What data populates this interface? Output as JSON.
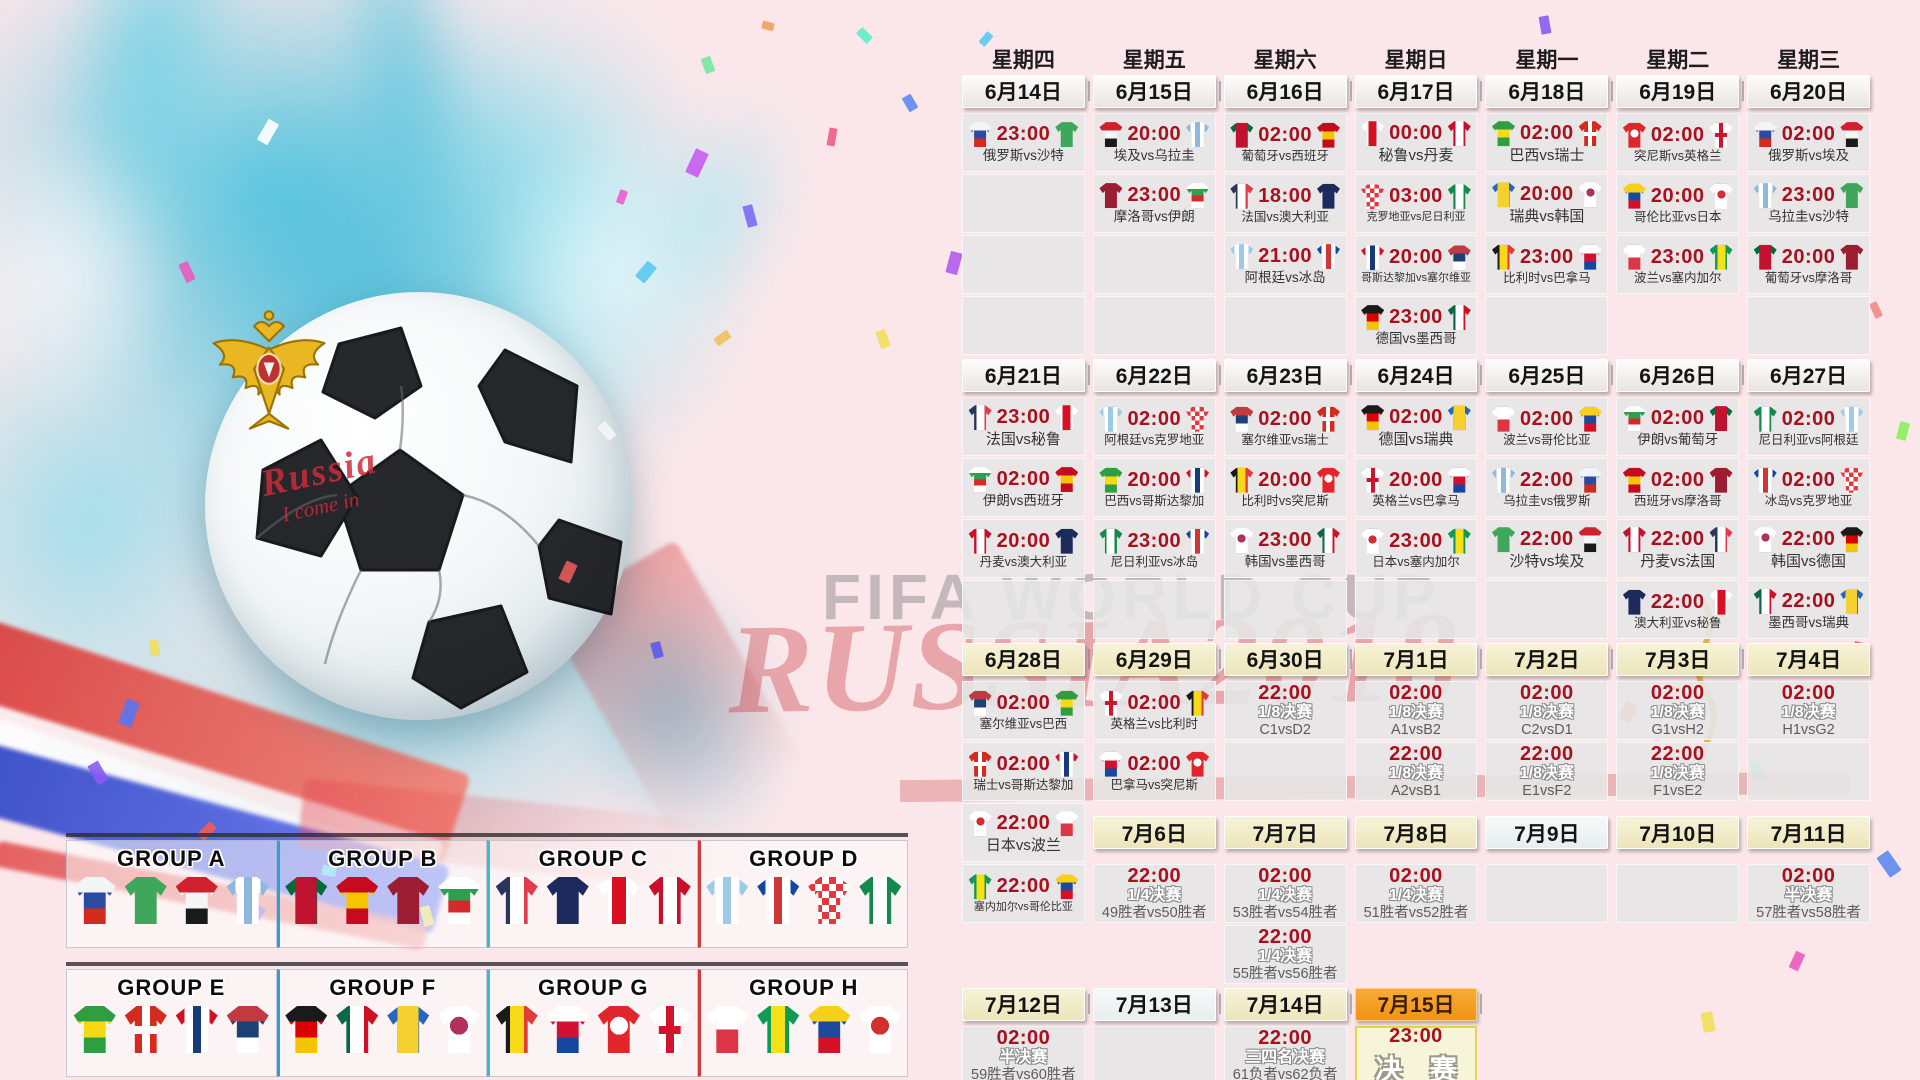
{
  "watermark": {
    "line1": "FIFA WORLD CUP",
    "line2": "RUSSIA2018"
  },
  "ball": {
    "handwriting_line1": "Russia",
    "handwriting_line2": "I come in"
  },
  "weekdays": [
    "星期四",
    "星期五",
    "星期六",
    "星期日",
    "星期一",
    "星期二",
    "星期三"
  ],
  "teams": {
    "俄罗斯": {
      "c": [
        "#f2f4f6",
        "#2a4ba0",
        "#d32a1e"
      ],
      "d": "h"
    },
    "沙特": {
      "c": [
        "#3fa75c"
      ],
      "d": "h"
    },
    "埃及": {
      "c": [
        "#d0202e",
        "#f5f5f5",
        "#1a1a1a"
      ],
      "d": "h"
    },
    "乌拉圭": {
      "c": [
        "#8fb8dd",
        "#ffffff",
        "#8fb8dd",
        "#ffffff",
        "#8fb8dd"
      ],
      "d": "v"
    },
    "葡萄牙": {
      "c": [
        "#046a38",
        "#c1122f",
        "#c1122f",
        "#046a38"
      ],
      "d": "v"
    },
    "西班牙": {
      "c": [
        "#c60b1e",
        "#f7c500",
        "#c60b1e"
      ],
      "d": "h"
    },
    "摩洛哥": {
      "c": [
        "#9c1c31"
      ],
      "d": "h"
    },
    "伊朗": {
      "c": [
        "#ffffff",
        "#2f9e4f",
        "#d42a2a",
        "#ffffff"
      ],
      "d": "h"
    },
    "法国": {
      "c": [
        "#27355f",
        "#ffffff",
        "#e23b4e"
      ],
      "d": "v"
    },
    "澳大利亚": {
      "c": [
        "#1d2a5c"
      ],
      "d": "h"
    },
    "秘鲁": {
      "c": [
        "#ffffff",
        "#d91023",
        "#ffffff"
      ],
      "d": "v"
    },
    "丹麦": {
      "c": [
        "#c8102e",
        "#ffffff",
        "#c8102e"
      ],
      "d": "v"
    },
    "阿根廷": {
      "c": [
        "#9ccbe9",
        "#ffffff",
        "#9ccbe9",
        "#ffffff",
        "#9ccbe9"
      ],
      "d": "v"
    },
    "冰岛": {
      "c": [
        "#1448a0",
        "#ffffff",
        "#d13636",
        "#ffffff",
        "#1448a0"
      ],
      "d": "v"
    },
    "克罗地亚": {
      "c": [
        "#e0393e",
        "#ffffff"
      ],
      "d": "h",
      "p": "checker"
    },
    "尼日利亚": {
      "c": [
        "#13894c",
        "#ffffff",
        "#13894c"
      ],
      "d": "v"
    },
    "巴西": {
      "c": [
        "#2f9e41",
        "#f6d912",
        "#2f9e41"
      ],
      "d": "h"
    },
    "瑞士": {
      "c": [
        "#d52b1e"
      ],
      "d": "h",
      "p": "plus",
      "pc": "#ffffff"
    },
    "哥斯达黎加": {
      "c": [
        "#d31126",
        "#ffffff",
        "#163a7a",
        "#ffffff",
        "#d31126"
      ],
      "d": "v"
    },
    "塞尔维亚": {
      "c": [
        "#c13a40",
        "#1d4076",
        "#ffffff"
      ],
      "d": "h"
    },
    "德国": {
      "c": [
        "#1a1a1a",
        "#dd0000",
        "#f5c400"
      ],
      "d": "h"
    },
    "墨西哥": {
      "c": [
        "#0b6847",
        "#ffffff",
        "#cf1126"
      ],
      "d": "v"
    },
    "瑞典": {
      "c": [
        "#2567bd",
        "#f5d130",
        "#f5d130",
        "#2567bd"
      ],
      "d": "v"
    },
    "韩国": {
      "c": [
        "#ffffff"
      ],
      "d": "h",
      "p": "dot",
      "pc": "#b03060"
    },
    "日本": {
      "c": [
        "#ffffff"
      ],
      "d": "h",
      "p": "dot",
      "pc": "#d03030"
    },
    "比利时": {
      "c": [
        "#1a1a1a",
        "#f7d917",
        "#e23b3b"
      ],
      "d": "v"
    },
    "巴拿马": {
      "c": [
        "#ffffff",
        "#d21034",
        "#1546a0"
      ],
      "d": "h"
    },
    "突尼斯": {
      "c": [
        "#e0252b"
      ],
      "d": "h",
      "p": "dot",
      "pc": "#ffffff"
    },
    "英格兰": {
      "c": [
        "#ffffff"
      ],
      "d": "h",
      "p": "plus",
      "pc": "#cf142b"
    },
    "波兰": {
      "c": [
        "#ffffff",
        "#dc3545"
      ],
      "d": "h"
    },
    "塞内加尔": {
      "c": [
        "#119a53",
        "#f7e017",
        "#119a53"
      ],
      "d": "v"
    },
    "哥伦比亚": {
      "c": [
        "#f7d117",
        "#1e4a9e",
        "#d31126"
      ],
      "d": "h"
    }
  },
  "bands": [
    {
      "kind": "weekday",
      "cells": [
        {
          "t": "wd",
          "x": "星期四"
        },
        {
          "t": "wd",
          "x": "星期五"
        },
        {
          "t": "wd",
          "x": "星期六"
        },
        {
          "t": "wd",
          "x": "星期日"
        },
        {
          "t": "wd",
          "x": "星期一"
        },
        {
          "t": "wd",
          "x": "星期二"
        },
        {
          "t": "wd",
          "x": "星期三"
        }
      ]
    },
    {
      "kind": "dates",
      "cells": [
        {
          "t": "date",
          "s": "plain",
          "x": "6月14日"
        },
        {
          "t": "date",
          "s": "plain",
          "x": "6月15日"
        },
        {
          "t": "date",
          "s": "plain",
          "x": "6月16日"
        },
        {
          "t": "date",
          "s": "plain",
          "x": "6月17日"
        },
        {
          "t": "date",
          "s": "plain",
          "x": "6月18日"
        },
        {
          "t": "date",
          "s": "plain",
          "x": "6月19日"
        },
        {
          "t": "date",
          "s": "plain",
          "x": "6月20日"
        }
      ]
    },
    {
      "kind": "matches",
      "cells": [
        {
          "t": "m",
          "time": "23:00",
          "h": "俄罗斯",
          "a": "沙特",
          "x": "俄罗斯vs沙特"
        },
        {
          "t": "m",
          "time": "20:00",
          "h": "埃及",
          "a": "乌拉圭",
          "x": "埃及vs乌拉圭"
        },
        {
          "t": "m",
          "time": "02:00",
          "h": "葡萄牙",
          "a": "西班牙",
          "x": "葡萄牙vs西班牙"
        },
        {
          "t": "m",
          "time": "00:00",
          "h": "秘鲁",
          "a": "丹麦",
          "x": "秘鲁vs丹麦"
        },
        {
          "t": "m",
          "time": "02:00",
          "h": "巴西",
          "a": "瑞士",
          "x": "巴西vs瑞士"
        },
        {
          "t": "m",
          "time": "02:00",
          "h": "突尼斯",
          "a": "英格兰",
          "x": "突尼斯vs英格兰"
        },
        {
          "t": "m",
          "time": "02:00",
          "h": "俄罗斯",
          "a": "埃及",
          "x": "俄罗斯vs埃及"
        }
      ]
    },
    {
      "kind": "matches",
      "cells": [
        {
          "t": "e"
        },
        {
          "t": "m",
          "time": "23:00",
          "h": "摩洛哥",
          "a": "伊朗",
          "x": "摩洛哥vs伊朗"
        },
        {
          "t": "m",
          "time": "18:00",
          "h": "法国",
          "a": "澳大利亚",
          "x": "法国vs澳大利亚"
        },
        {
          "t": "m",
          "time": "03:00",
          "h": "克罗地亚",
          "a": "尼日利亚",
          "x": "克罗地亚vs尼日利亚"
        },
        {
          "t": "m",
          "time": "20:00",
          "h": "瑞典",
          "a": "韩国",
          "x": "瑞典vs韩国"
        },
        {
          "t": "m",
          "time": "20:00",
          "h": "哥伦比亚",
          "a": "日本",
          "x": "哥伦比亚vs日本"
        },
        {
          "t": "m",
          "time": "23:00",
          "h": "乌拉圭",
          "a": "沙特",
          "x": "乌拉圭vs沙特"
        }
      ]
    },
    {
      "kind": "matches",
      "cells": [
        {
          "t": "e"
        },
        {
          "t": "e"
        },
        {
          "t": "m",
          "time": "21:00",
          "h": "阿根廷",
          "a": "冰岛",
          "x": "阿根廷vs冰岛"
        },
        {
          "t": "m",
          "time": "20:00",
          "h": "哥斯达黎加",
          "a": "塞尔维亚",
          "x": "哥斯达黎加vs塞尔维亚"
        },
        {
          "t": "m",
          "time": "23:00",
          "h": "比利时",
          "a": "巴拿马",
          "x": "比利时vs巴拿马"
        },
        {
          "t": "m",
          "time": "23:00",
          "h": "波兰",
          "a": "塞内加尔",
          "x": "波兰vs塞内加尔"
        },
        {
          "t": "m",
          "time": "20:00",
          "h": "葡萄牙",
          "a": "摩洛哥",
          "x": "葡萄牙vs摩洛哥"
        }
      ]
    },
    {
      "kind": "matches",
      "cells": [
        {
          "t": "e"
        },
        {
          "t": "e"
        },
        {
          "t": "e"
        },
        {
          "t": "m",
          "time": "23:00",
          "h": "德国",
          "a": "墨西哥",
          "x": "德国vs墨西哥"
        },
        {
          "t": "e"
        },
        {
          "t": "n"
        },
        {
          "t": "e"
        }
      ]
    },
    {
      "kind": "dates",
      "cells": [
        {
          "t": "date",
          "s": "plain",
          "x": "6月21日"
        },
        {
          "t": "date",
          "s": "plain",
          "x": "6月22日"
        },
        {
          "t": "date",
          "s": "plain",
          "x": "6月23日"
        },
        {
          "t": "date",
          "s": "plain",
          "x": "6月24日"
        },
        {
          "t": "date",
          "s": "plain",
          "x": "6月25日"
        },
        {
          "t": "date",
          "s": "plain",
          "x": "6月26日"
        },
        {
          "t": "date",
          "s": "plain",
          "x": "6月27日"
        }
      ]
    },
    {
      "kind": "matches",
      "cells": [
        {
          "t": "m",
          "time": "23:00",
          "h": "法国",
          "a": "秘鲁",
          "x": "法国vs秘鲁"
        },
        {
          "t": "m",
          "time": "02:00",
          "h": "阿根廷",
          "a": "克罗地亚",
          "x": "阿根廷vs克罗地亚"
        },
        {
          "t": "m",
          "time": "02:00",
          "h": "塞尔维亚",
          "a": "瑞士",
          "x": "塞尔维亚vs瑞士"
        },
        {
          "t": "m",
          "time": "02:00",
          "h": "德国",
          "a": "瑞典",
          "x": "德国vs瑞典"
        },
        {
          "t": "m",
          "time": "02:00",
          "h": "波兰",
          "a": "哥伦比亚",
          "x": "波兰vs哥伦比亚"
        },
        {
          "t": "m",
          "time": "02:00",
          "h": "伊朗",
          "a": "葡萄牙",
          "x": "伊朗vs葡萄牙"
        },
        {
          "t": "m",
          "time": "02:00",
          "h": "尼日利亚",
          "a": "阿根廷",
          "x": "尼日利亚vs阿根廷"
        }
      ]
    },
    {
      "kind": "matches",
      "cells": [
        {
          "t": "m",
          "time": "02:00",
          "h": "伊朗",
          "a": "西班牙",
          "x": "伊朗vs西班牙"
        },
        {
          "t": "m",
          "time": "20:00",
          "h": "巴西",
          "a": "哥斯达黎加",
          "x": "巴西vs哥斯达黎加"
        },
        {
          "t": "m",
          "time": "20:00",
          "h": "比利时",
          "a": "突尼斯",
          "x": "比利时vs突尼斯"
        },
        {
          "t": "m",
          "time": "20:00",
          "h": "英格兰",
          "a": "巴拿马",
          "x": "英格兰vs巴拿马"
        },
        {
          "t": "m",
          "time": "22:00",
          "h": "乌拉圭",
          "a": "俄罗斯",
          "x": "乌拉圭vs俄罗斯"
        },
        {
          "t": "m",
          "time": "02:00",
          "h": "西班牙",
          "a": "摩洛哥",
          "x": "西班牙vs摩洛哥"
        },
        {
          "t": "m",
          "time": "02:00",
          "h": "冰岛",
          "a": "克罗地亚",
          "x": "冰岛vs克罗地亚"
        }
      ]
    },
    {
      "kind": "matches",
      "cells": [
        {
          "t": "m",
          "time": "20:00",
          "h": "丹麦",
          "a": "澳大利亚",
          "x": "丹麦vs澳大利亚"
        },
        {
          "t": "m",
          "time": "23:00",
          "h": "尼日利亚",
          "a": "冰岛",
          "x": "尼日利亚vs冰岛"
        },
        {
          "t": "m",
          "time": "23:00",
          "h": "韩国",
          "a": "墨西哥",
          "x": "韩国vs墨西哥"
        },
        {
          "t": "m",
          "time": "23:00",
          "h": "日本",
          "a": "塞内加尔",
          "x": "日本vs塞内加尔"
        },
        {
          "t": "m",
          "time": "22:00",
          "h": "沙特",
          "a": "埃及",
          "x": "沙特vs埃及"
        },
        {
          "t": "m",
          "time": "22:00",
          "h": "丹麦",
          "a": "法国",
          "x": "丹麦vs法国"
        },
        {
          "t": "m",
          "time": "22:00",
          "h": "韩国",
          "a": "德国",
          "x": "韩国vs德国"
        }
      ]
    },
    {
      "kind": "matches",
      "cells": [
        {
          "t": "e"
        },
        {
          "t": "e"
        },
        {
          "t": "e"
        },
        {
          "t": "e"
        },
        {
          "t": "e"
        },
        {
          "t": "m",
          "time": "22:00",
          "h": "澳大利亚",
          "a": "秘鲁",
          "x": "澳大利亚vs秘鲁"
        },
        {
          "t": "m",
          "time": "22:00",
          "h": "墨西哥",
          "a": "瑞典",
          "x": "墨西哥vs瑞典"
        }
      ]
    },
    {
      "kind": "dates",
      "cells": [
        {
          "t": "date",
          "s": "cream",
          "x": "6月28日"
        },
        {
          "t": "date",
          "s": "cream",
          "x": "6月29日"
        },
        {
          "t": "date",
          "s": "cream",
          "x": "6月30日"
        },
        {
          "t": "date",
          "s": "cream",
          "x": "7月1日"
        },
        {
          "t": "date",
          "s": "cream",
          "x": "7月2日"
        },
        {
          "t": "date",
          "s": "cream",
          "x": "7月3日"
        },
        {
          "t": "date",
          "s": "cream",
          "x": "7月4日"
        }
      ]
    },
    {
      "kind": "matches",
      "cells": [
        {
          "t": "m",
          "time": "02:00",
          "h": "塞尔维亚",
          "a": "巴西",
          "x": "塞尔维亚vs巴西"
        },
        {
          "t": "m",
          "time": "02:00",
          "h": "英格兰",
          "a": "比利时",
          "x": "英格兰vs比利时"
        },
        {
          "t": "ko",
          "time": "22:00",
          "stage": "1/8决赛",
          "pair": "C1vsD2"
        },
        {
          "t": "ko",
          "time": "02:00",
          "stage": "1/8决赛",
          "pair": "A1vsB2"
        },
        {
          "t": "ko",
          "time": "02:00",
          "stage": "1/8决赛",
          "pair": "C2vsD1"
        },
        {
          "t": "ko",
          "time": "02:00",
          "stage": "1/8决赛",
          "pair": "G1vsH2"
        },
        {
          "t": "ko",
          "time": "02:00",
          "stage": "1/8决赛",
          "pair": "H1vsG2"
        }
      ]
    },
    {
      "kind": "matches",
      "cells": [
        {
          "t": "m",
          "time": "02:00",
          "h": "瑞士",
          "a": "哥斯达黎加",
          "x": "瑞士vs哥斯达黎加"
        },
        {
          "t": "m",
          "time": "02:00",
          "h": "巴拿马",
          "a": "突尼斯",
          "x": "巴拿马vs突尼斯"
        },
        {
          "t": "e"
        },
        {
          "t": "ko",
          "time": "22:00",
          "stage": "1/8决赛",
          "pair": "A2vsB1"
        },
        {
          "t": "ko",
          "time": "22:00",
          "stage": "1/8决赛",
          "pair": "E1vsF2"
        },
        {
          "t": "ko",
          "time": "22:00",
          "stage": "1/8决赛",
          "pair": "F1vsE2"
        },
        {
          "t": "e"
        }
      ]
    },
    {
      "kind": "matches",
      "cells": [
        {
          "t": "m",
          "time": "22:00",
          "h": "日本",
          "a": "波兰",
          "x": "日本vs波兰"
        },
        {
          "t": "date",
          "s": "cream",
          "x": "7月6日"
        },
        {
          "t": "date",
          "s": "cream",
          "x": "7月7日"
        },
        {
          "t": "date",
          "s": "cream",
          "x": "7月8日"
        },
        {
          "t": "date",
          "s": "white",
          "x": "7月9日"
        },
        {
          "t": "date",
          "s": "cream",
          "x": "7月10日"
        },
        {
          "t": "date",
          "s": "cream",
          "x": "7月11日"
        }
      ]
    },
    {
      "kind": "matches",
      "cells": [
        {
          "t": "m",
          "time": "22:00",
          "h": "塞内加尔",
          "a": "哥伦比亚",
          "x": "塞内加尔vs哥伦比亚"
        },
        {
          "t": "ko",
          "time": "22:00",
          "stage": "1/4决赛",
          "pair": "49胜者vs50胜者"
        },
        {
          "t": "ko",
          "time": "02:00",
          "stage": "1/4决赛",
          "pair": "53胜者vs54胜者"
        },
        {
          "t": "ko",
          "time": "02:00",
          "stage": "1/4决赛",
          "pair": "51胜者vs52胜者"
        },
        {
          "t": "e"
        },
        {
          "t": "e"
        },
        {
          "t": "ko",
          "time": "02:00",
          "stage": "半决赛",
          "pair": "57胜者vs58胜者"
        }
      ]
    },
    {
      "kind": "matches",
      "cells": [
        {
          "t": "n"
        },
        {
          "t": "n"
        },
        {
          "t": "ko",
          "time": "22:00",
          "stage": "1/4决赛",
          "pair": "55胜者vs56胜者"
        },
        {
          "t": "n"
        },
        {
          "t": "n"
        },
        {
          "t": "n"
        },
        {
          "t": "n"
        }
      ]
    },
    {
      "kind": "dates",
      "cells": [
        {
          "t": "date",
          "s": "cream",
          "x": "7月12日"
        },
        {
          "t": "date",
          "s": "white",
          "x": "7月13日"
        },
        {
          "t": "date",
          "s": "cream",
          "x": "7月14日"
        },
        {
          "t": "date",
          "s": "orange",
          "x": "7月15日"
        },
        {
          "t": "n"
        },
        {
          "t": "n"
        },
        {
          "t": "n"
        }
      ]
    },
    {
      "kind": "matches",
      "cells": [
        {
          "t": "ko",
          "time": "02:00",
          "stage": "半决赛",
          "pair": "59胜者vs60胜者"
        },
        {
          "t": "e"
        },
        {
          "t": "ko",
          "time": "22:00",
          "stage": "三四名决赛",
          "pair": "61负者vs62负者"
        },
        {
          "t": "f",
          "time": "23:00",
          "x": "决 赛"
        },
        {
          "t": "n"
        },
        {
          "t": "n"
        },
        {
          "t": "n"
        }
      ]
    }
  ],
  "groups": {
    "rows": [
      [
        {
          "label": "GROUP A",
          "teams": [
            "俄罗斯",
            "沙特",
            "埃及",
            "乌拉圭"
          ]
        },
        {
          "label": "GROUP B",
          "teams": [
            "葡萄牙",
            "西班牙",
            "摩洛哥",
            "伊朗"
          ]
        },
        {
          "label": "GROUP C",
          "teams": [
            "法国",
            "澳大利亚",
            "秘鲁",
            "丹麦"
          ]
        },
        {
          "label": "GROUP D",
          "teams": [
            "阿根廷",
            "冰岛",
            "克罗地亚",
            "尼日利亚"
          ]
        }
      ],
      [
        {
          "label": "GROUP E",
          "teams": [
            "巴西",
            "瑞士",
            "哥斯达黎加",
            "塞尔维亚"
          ]
        },
        {
          "label": "GROUP F",
          "teams": [
            "德国",
            "墨西哥",
            "瑞典",
            "韩国"
          ]
        },
        {
          "label": "GROUP G",
          "teams": [
            "比利时",
            "巴拿马",
            "突尼斯",
            "英格兰"
          ]
        },
        {
          "label": "GROUP H",
          "teams": [
            "波兰",
            "塞内加尔",
            "哥伦比亚",
            "日本"
          ]
        }
      ]
    ]
  }
}
